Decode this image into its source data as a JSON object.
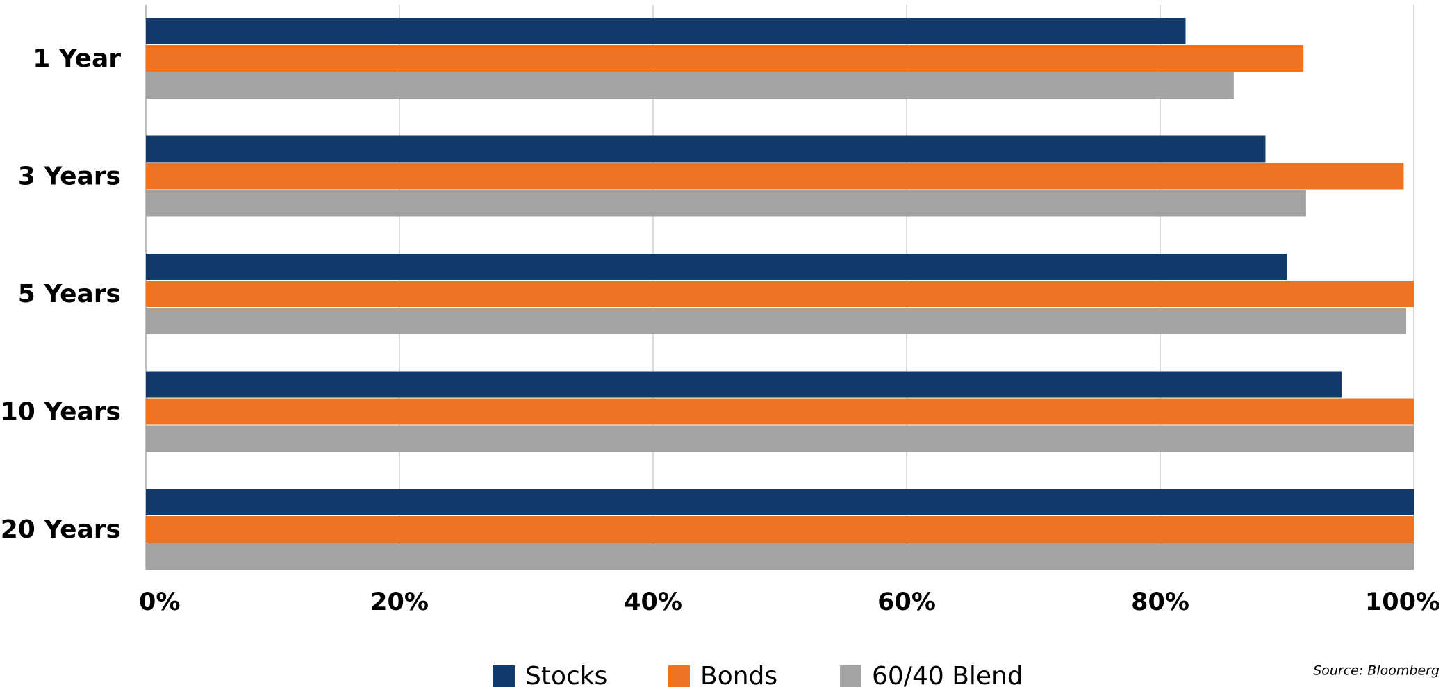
{
  "chart_data": {
    "type": "bar",
    "orientation": "horizontal",
    "categories": [
      "1 Year",
      "3 Years",
      "5 Years",
      "10 Years",
      "20 Years"
    ],
    "series": [
      {
        "name": "Stocks",
        "color": "#123a6b",
        "values": [
          82,
          88.3,
          90,
          94.3,
          100
        ]
      },
      {
        "name": "Bonds",
        "color": "#ec7424",
        "values": [
          91.3,
          99.2,
          100,
          100,
          100
        ]
      },
      {
        "name": "60/40 Blend",
        "color": "#a3a3a3",
        "values": [
          85.8,
          91.5,
          99.4,
          100,
          100
        ]
      }
    ],
    "xlim": [
      0,
      100
    ],
    "xticks": [
      {
        "value": 0,
        "label": "0%"
      },
      {
        "value": 20,
        "label": "20%"
      },
      {
        "value": 40,
        "label": "40%"
      },
      {
        "value": 60,
        "label": "60%"
      },
      {
        "value": 80,
        "label": "80%"
      },
      {
        "value": 100,
        "label": "100%"
      }
    ],
    "grid": true,
    "legend": "bottom",
    "source": "Source: Bloomberg"
  }
}
